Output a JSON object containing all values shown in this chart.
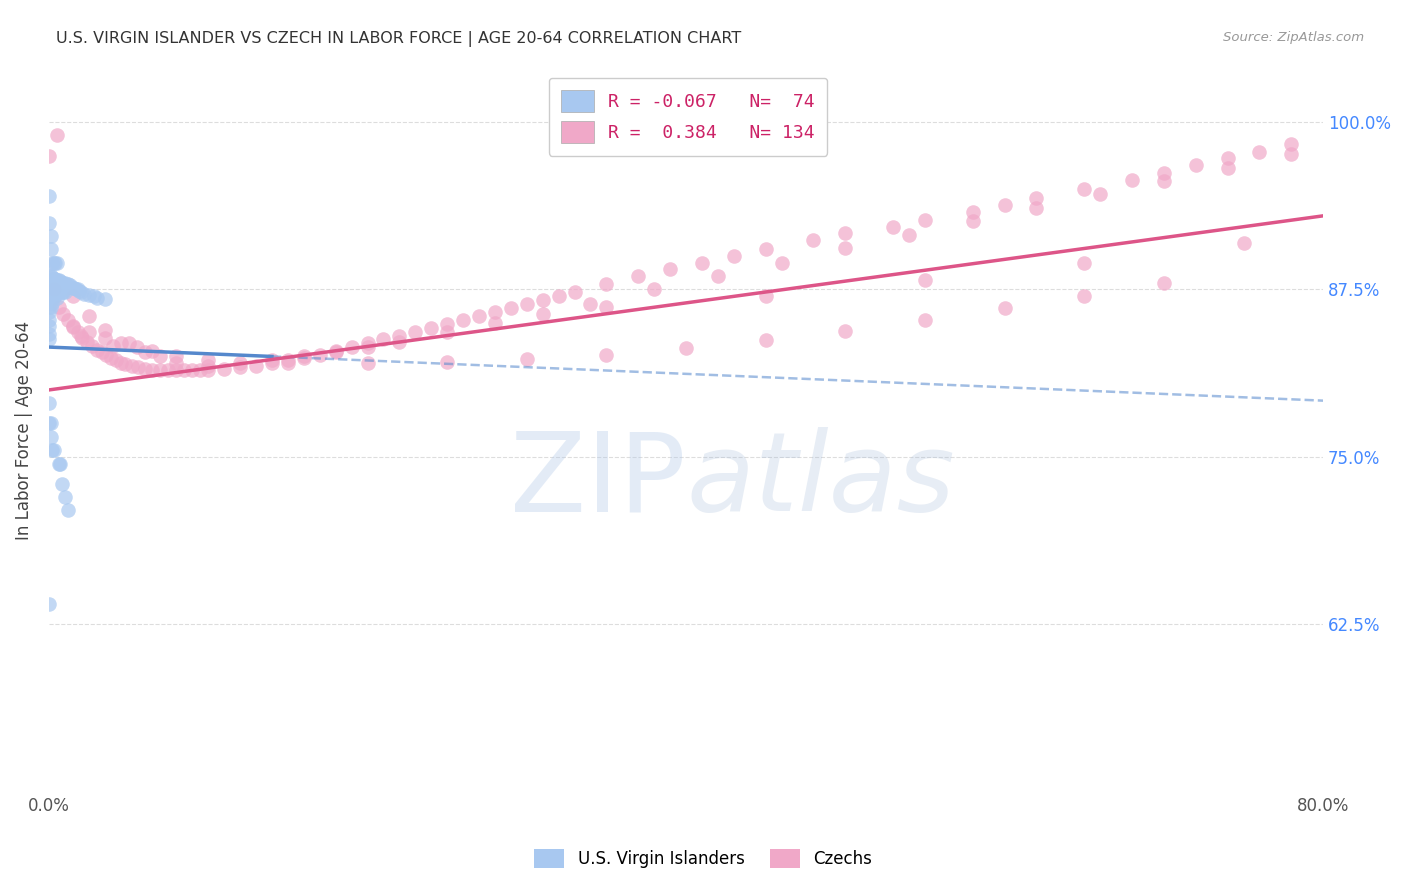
{
  "title": "U.S. VIRGIN ISLANDER VS CZECH IN LABOR FORCE | AGE 20-64 CORRELATION CHART",
  "source": "Source: ZipAtlas.com",
  "ylabel": "In Labor Force | Age 20-64",
  "legend_label1": "U.S. Virgin Islanders",
  "legend_label2": "Czechs",
  "R1": -0.067,
  "N1": 74,
  "R2": 0.384,
  "N2": 134,
  "color1": "#a8c8f0",
  "color2": "#f0a8c8",
  "trendline1_color": "#5588cc",
  "trendline2_color": "#dd5588",
  "xmin": 0.0,
  "xmax": 0.8,
  "ymin": 0.5,
  "ymax": 1.04,
  "yticks": [
    0.625,
    0.75,
    0.875,
    1.0
  ],
  "ytick_labels": [
    "62.5%",
    "75.0%",
    "87.5%",
    "100.0%"
  ],
  "xtick_labels": [
    "0.0%",
    "",
    "",
    "",
    "80.0%"
  ],
  "watermark_zip": "ZIP",
  "watermark_atlas": "atlas",
  "background_color": "#ffffff",
  "grid_color": "#dddddd",
  "blue_dots_x": [
    0.0,
    0.0,
    0.0,
    0.0,
    0.0,
    0.0,
    0.0,
    0.0,
    0.0,
    0.0,
    0.001,
    0.001,
    0.001,
    0.001,
    0.001,
    0.002,
    0.002,
    0.002,
    0.002,
    0.003,
    0.003,
    0.003,
    0.004,
    0.004,
    0.004,
    0.005,
    0.005,
    0.005,
    0.006,
    0.006,
    0.007,
    0.007,
    0.008,
    0.008,
    0.009,
    0.009,
    0.01,
    0.01,
    0.012,
    0.013,
    0.014,
    0.015,
    0.016,
    0.017,
    0.018,
    0.019,
    0.02,
    0.022,
    0.025,
    0.028,
    0.03,
    0.035,
    0.0,
    0.0,
    0.001,
    0.001,
    0.002,
    0.003,
    0.004,
    0.005,
    0.0,
    0.0,
    0.001,
    0.001,
    0.002,
    0.003,
    0.006,
    0.007,
    0.0,
    0.008,
    0.01,
    0.012
  ],
  "blue_dots_y": [
    0.885,
    0.878,
    0.872,
    0.868,
    0.862,
    0.858,
    0.852,
    0.848,
    0.842,
    0.838,
    0.885,
    0.878,
    0.873,
    0.868,
    0.862,
    0.884,
    0.878,
    0.872,
    0.865,
    0.883,
    0.877,
    0.87,
    0.883,
    0.877,
    0.87,
    0.882,
    0.876,
    0.869,
    0.882,
    0.875,
    0.881,
    0.874,
    0.88,
    0.873,
    0.88,
    0.873,
    0.88,
    0.873,
    0.879,
    0.878,
    0.877,
    0.876,
    0.876,
    0.875,
    0.875,
    0.874,
    0.873,
    0.872,
    0.871,
    0.87,
    0.869,
    0.868,
    0.945,
    0.925,
    0.915,
    0.905,
    0.895,
    0.895,
    0.895,
    0.895,
    0.79,
    0.775,
    0.775,
    0.765,
    0.755,
    0.755,
    0.745,
    0.745,
    0.64,
    0.73,
    0.72,
    0.71
  ],
  "pink_dots_x": [
    0.0,
    0.003,
    0.006,
    0.009,
    0.012,
    0.015,
    0.018,
    0.021,
    0.024,
    0.027,
    0.03,
    0.033,
    0.036,
    0.039,
    0.042,
    0.045,
    0.048,
    0.052,
    0.056,
    0.06,
    0.065,
    0.07,
    0.075,
    0.08,
    0.085,
    0.09,
    0.095,
    0.1,
    0.11,
    0.12,
    0.13,
    0.14,
    0.15,
    0.16,
    0.17,
    0.18,
    0.19,
    0.2,
    0.21,
    0.22,
    0.23,
    0.24,
    0.25,
    0.26,
    0.27,
    0.28,
    0.29,
    0.3,
    0.31,
    0.32,
    0.33,
    0.35,
    0.37,
    0.39,
    0.41,
    0.43,
    0.45,
    0.48,
    0.5,
    0.53,
    0.55,
    0.58,
    0.6,
    0.62,
    0.65,
    0.68,
    0.7,
    0.72,
    0.74,
    0.76,
    0.78,
    0.015,
    0.025,
    0.035,
    0.045,
    0.055,
    0.065,
    0.08,
    0.1,
    0.12,
    0.14,
    0.16,
    0.18,
    0.2,
    0.22,
    0.25,
    0.28,
    0.31,
    0.34,
    0.38,
    0.42,
    0.46,
    0.5,
    0.54,
    0.58,
    0.62,
    0.66,
    0.7,
    0.74,
    0.78,
    0.02,
    0.04,
    0.06,
    0.08,
    0.1,
    0.15,
    0.2,
    0.25,
    0.3,
    0.35,
    0.4,
    0.45,
    0.5,
    0.55,
    0.6,
    0.65,
    0.7,
    0.35,
    0.45,
    0.55,
    0.65,
    0.75,
    0.005,
    0.015,
    0.025,
    0.035,
    0.05,
    0.07
  ],
  "pink_dots_y": [
    0.975,
    0.875,
    0.862,
    0.857,
    0.852,
    0.847,
    0.843,
    0.839,
    0.836,
    0.833,
    0.83,
    0.828,
    0.826,
    0.824,
    0.822,
    0.82,
    0.819,
    0.818,
    0.817,
    0.816,
    0.815,
    0.815,
    0.815,
    0.815,
    0.815,
    0.815,
    0.815,
    0.815,
    0.816,
    0.817,
    0.818,
    0.82,
    0.822,
    0.824,
    0.826,
    0.829,
    0.832,
    0.835,
    0.838,
    0.84,
    0.843,
    0.846,
    0.849,
    0.852,
    0.855,
    0.858,
    0.861,
    0.864,
    0.867,
    0.87,
    0.873,
    0.879,
    0.885,
    0.89,
    0.895,
    0.9,
    0.905,
    0.912,
    0.917,
    0.922,
    0.927,
    0.933,
    0.938,
    0.943,
    0.95,
    0.957,
    0.962,
    0.968,
    0.973,
    0.978,
    0.984,
    0.848,
    0.843,
    0.839,
    0.835,
    0.832,
    0.829,
    0.82,
    0.818,
    0.82,
    0.822,
    0.825,
    0.828,
    0.832,
    0.836,
    0.843,
    0.85,
    0.857,
    0.864,
    0.875,
    0.885,
    0.895,
    0.906,
    0.916,
    0.926,
    0.936,
    0.946,
    0.956,
    0.966,
    0.976,
    0.84,
    0.833,
    0.828,
    0.825,
    0.822,
    0.82,
    0.82,
    0.821,
    0.823,
    0.826,
    0.831,
    0.837,
    0.844,
    0.852,
    0.861,
    0.87,
    0.88,
    0.862,
    0.87,
    0.882,
    0.895,
    0.91,
    0.99,
    0.87,
    0.855,
    0.845,
    0.835,
    0.825
  ]
}
